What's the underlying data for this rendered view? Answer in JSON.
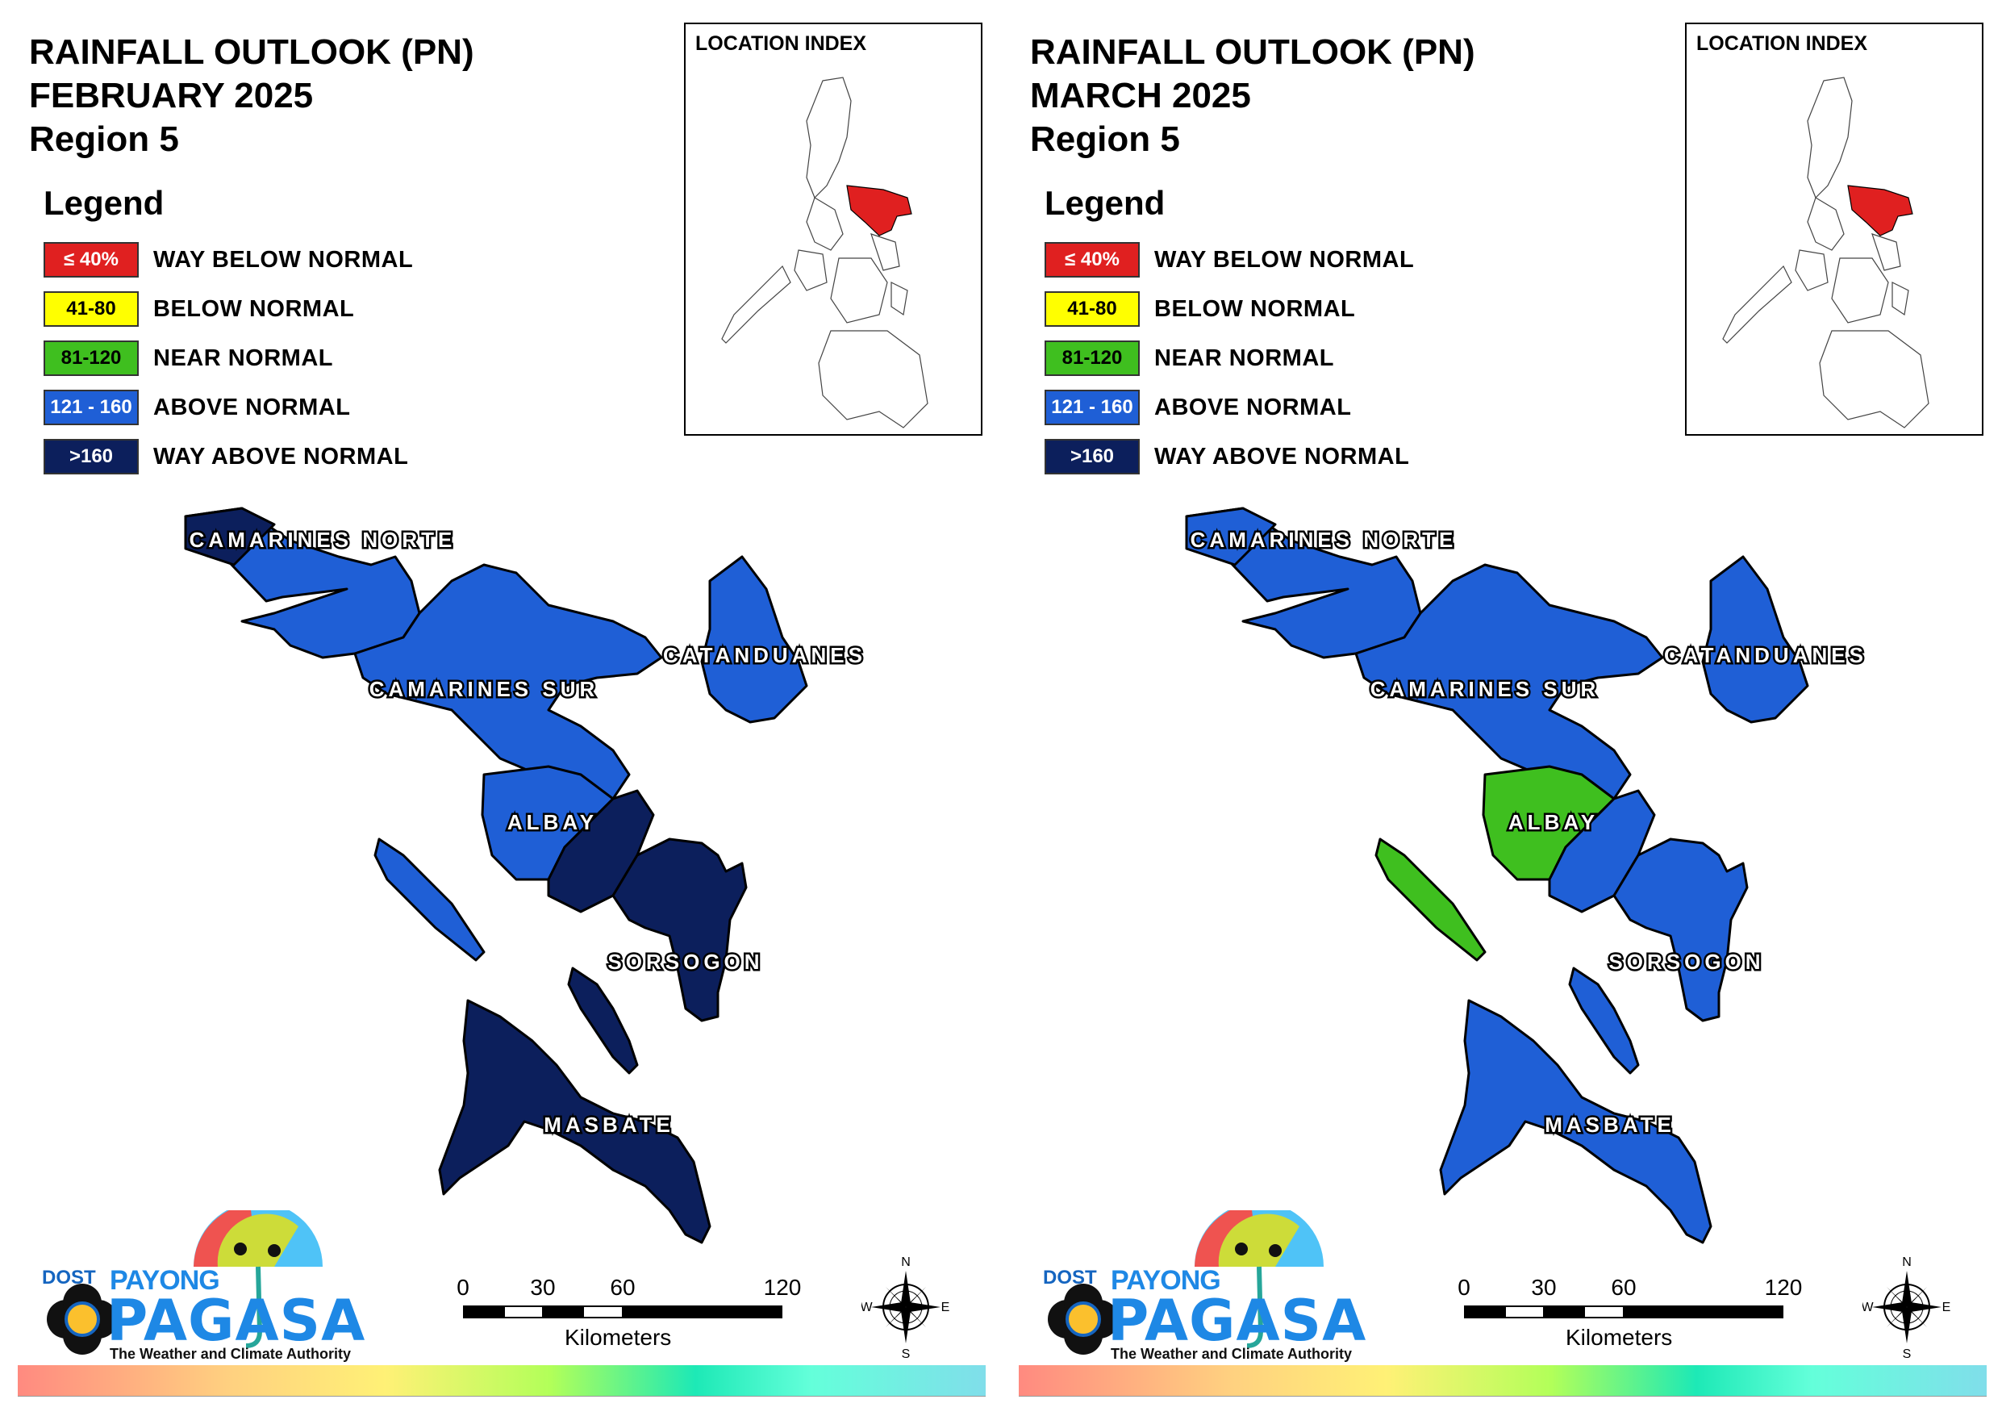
{
  "colors": {
    "way_below": "#e02020",
    "below": "#ffff00",
    "near": "#3fbf1f",
    "above": "#1f5fd6",
    "way_above": "#0c1f5c",
    "outline": "#000000"
  },
  "legend": {
    "title": "Legend",
    "items": [
      {
        "range": "≤ 40%",
        "label": "WAY BELOW NORMAL",
        "color": "#e02020",
        "text_color": "#ffffff"
      },
      {
        "range": "41-80",
        "label": "BELOW NORMAL",
        "color": "#ffff00",
        "text_color": "#000000"
      },
      {
        "range": "81-120",
        "label": "NEAR NORMAL",
        "color": "#3fbf1f",
        "text_color": "#000000"
      },
      {
        "range": "121 - 160",
        "label": "ABOVE NORMAL",
        "color": "#1f5fd6",
        "text_color": "#ffffff"
      },
      {
        "range": ">160",
        "label": "WAY ABOVE NORMAL",
        "color": "#0c1f5c",
        "text_color": "#ffffff"
      }
    ]
  },
  "inset": {
    "title": "LOCATION INDEX"
  },
  "scale": {
    "ticks": [
      "0",
      "30",
      "60",
      "120"
    ],
    "unit": "Kilometers"
  },
  "compass": {
    "n": "N",
    "s": "S",
    "e": "E",
    "w": "W"
  },
  "logo": {
    "dost": "DOST",
    "payong": "PAYONG",
    "pagasa": "PAGASA",
    "tagline": "The Weather and Climate Authority"
  },
  "provinces_labels": {
    "camarines_norte": "CAMARINES NORTE",
    "camarines_sur": "CAMARINES SUR",
    "catanduanes": "CATANDUANES",
    "albay": "ALBAY",
    "sorsogon": "SORSOGON",
    "masbate": "MASBATE"
  },
  "panels": [
    {
      "title1": "RAINFALL OUTLOOK (PN)",
      "title2": "FEBRUARY 2025",
      "title3": "Region 5",
      "categories": {
        "camarines_norte": "above",
        "camarines_norte_tip": "way_above",
        "camarines_sur": "above",
        "catanduanes": "above",
        "albay_west": "above",
        "albay_east": "way_above",
        "sorsogon": "way_above",
        "burias": "above",
        "ticao": "way_above",
        "masbate": "way_above"
      }
    },
    {
      "title1": "RAINFALL OUTLOOK (PN)",
      "title2": "MARCH 2025",
      "title3": "Region 5",
      "categories": {
        "camarines_norte": "above",
        "camarines_norte_tip": "above",
        "camarines_sur": "above",
        "catanduanes": "above",
        "albay_west": "near",
        "albay_east": "above",
        "sorsogon": "above",
        "burias": "near",
        "ticao": "above",
        "masbate": "above"
      }
    }
  ]
}
